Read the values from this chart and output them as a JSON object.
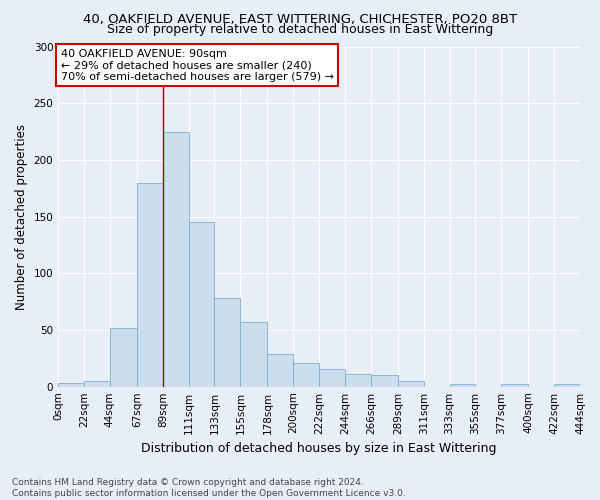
{
  "title": "40, OAKFIELD AVENUE, EAST WITTERING, CHICHESTER, PO20 8BT",
  "subtitle": "Size of property relative to detached houses in East Wittering",
  "xlabel": "Distribution of detached houses by size in East Wittering",
  "ylabel": "Number of detached properties",
  "bar_color": "#ccdded",
  "bar_edge_color": "#7ab0d0",
  "bg_color": "#e8eef5",
  "grid_color": "#ffffff",
  "annotation_text": "40 OAKFIELD AVENUE: 90sqm\n← 29% of detached houses are smaller (240)\n70% of semi-detached houses are larger (579) →",
  "annotation_box_color": "#ffffff",
  "annotation_box_edge": "#cc0000",
  "property_line_color": "#990000",
  "property_line_x": 89,
  "bin_edges": [
    0,
    22,
    44,
    67,
    89,
    111,
    133,
    155,
    178,
    200,
    222,
    244,
    266,
    289,
    311,
    333,
    355,
    377,
    400,
    422,
    444
  ],
  "bin_counts": [
    3,
    5,
    52,
    180,
    225,
    145,
    78,
    57,
    29,
    21,
    16,
    11,
    10,
    5,
    0,
    2,
    0,
    2,
    0,
    2
  ],
  "xtick_labels": [
    "0sqm",
    "22sqm",
    "44sqm",
    "67sqm",
    "89sqm",
    "111sqm",
    "133sqm",
    "155sqm",
    "178sqm",
    "200sqm",
    "222sqm",
    "244sqm",
    "266sqm",
    "289sqm",
    "311sqm",
    "333sqm",
    "355sqm",
    "377sqm",
    "400sqm",
    "422sqm",
    "444sqm"
  ],
  "ytick_vals": [
    0,
    50,
    100,
    150,
    200,
    250,
    300
  ],
  "ylim": [
    0,
    300
  ],
  "footnote": "Contains HM Land Registry data © Crown copyright and database right 2024.\nContains public sector information licensed under the Open Government Licence v3.0.",
  "title_fontsize": 9.5,
  "subtitle_fontsize": 9,
  "xlabel_fontsize": 9,
  "ylabel_fontsize": 8.5,
  "tick_fontsize": 7.5,
  "footnote_fontsize": 6.5,
  "annotation_fontsize": 8
}
